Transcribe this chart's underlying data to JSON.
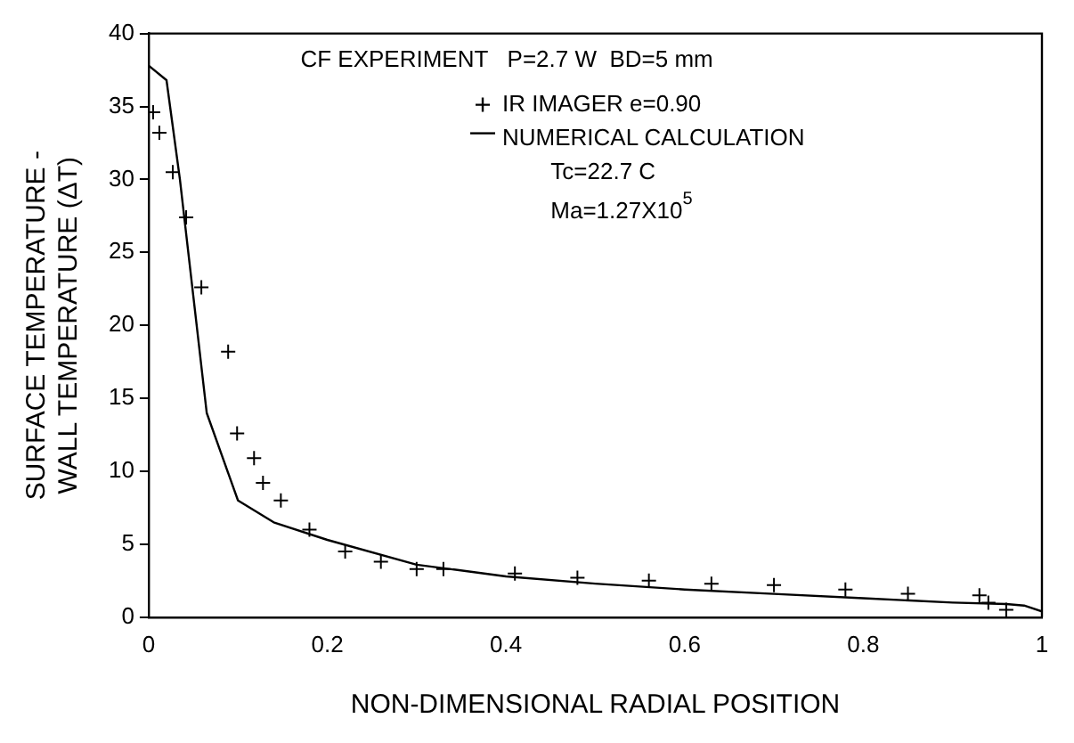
{
  "chart_data": {
    "type": "scatter",
    "xlabel": "NON-DIMENSIONAL RADIAL POSITION",
    "ylabel": "SURFACE TEMPERATURE -\nWALL TEMPERATURE (ΔT)",
    "annotations": [
      "CF EXPERIMENT   P=2.7 W  BD=5 mm",
      "Tc=22.7 C",
      "Ma=1.27X10$^{5}$"
    ],
    "xlim": [
      0,
      1
    ],
    "xticks": [
      0,
      0.2,
      0.4,
      0.6,
      0.8,
      1
    ],
    "ylim": [
      0,
      40
    ],
    "yticks": [
      0,
      5,
      10,
      15,
      20,
      25,
      30,
      35,
      40
    ],
    "grid": false,
    "legend": "top right",
    "series": [
      {
        "name": "IR IMAGER e=0.90",
        "type": "scatter",
        "marker": "cross",
        "color": "#000000",
        "x": [
          0.005,
          0.012,
          0.027,
          0.042,
          0.059,
          0.089,
          0.099,
          0.118,
          0.128,
          0.148,
          0.18,
          0.22,
          0.26,
          0.3,
          0.33,
          0.41,
          0.48,
          0.56,
          0.63,
          0.7,
          0.78,
          0.85,
          0.93,
          0.94,
          0.96
        ],
        "values": [
          34.6,
          33.2,
          30.5,
          27.4,
          22.6,
          18.2,
          12.6,
          10.9,
          9.2,
          8,
          6,
          4.5,
          3.8,
          3.3,
          3.3,
          3,
          2.7,
          2.5,
          2.3,
          2.2,
          1.9,
          1.6,
          1.5,
          1,
          0.5
        ]
      },
      {
        "name": "NUMERICAL CALCULATION",
        "type": "line",
        "marker": "none",
        "line_style": "solid",
        "color": "#000000",
        "x": [
          0,
          0.02,
          0.035,
          0.05,
          0.065,
          0.1,
          0.14,
          0.2,
          0.3,
          0.4,
          0.5,
          0.6,
          0.7,
          0.8,
          0.9,
          0.96,
          0.98,
          1
        ],
        "values": [
          37.8,
          36.8,
          30,
          22,
          14,
          8,
          6.5,
          5.3,
          3.6,
          2.8,
          2.3,
          1.9,
          1.6,
          1.3,
          1,
          0.9,
          0.8,
          0.4
        ]
      }
    ]
  }
}
